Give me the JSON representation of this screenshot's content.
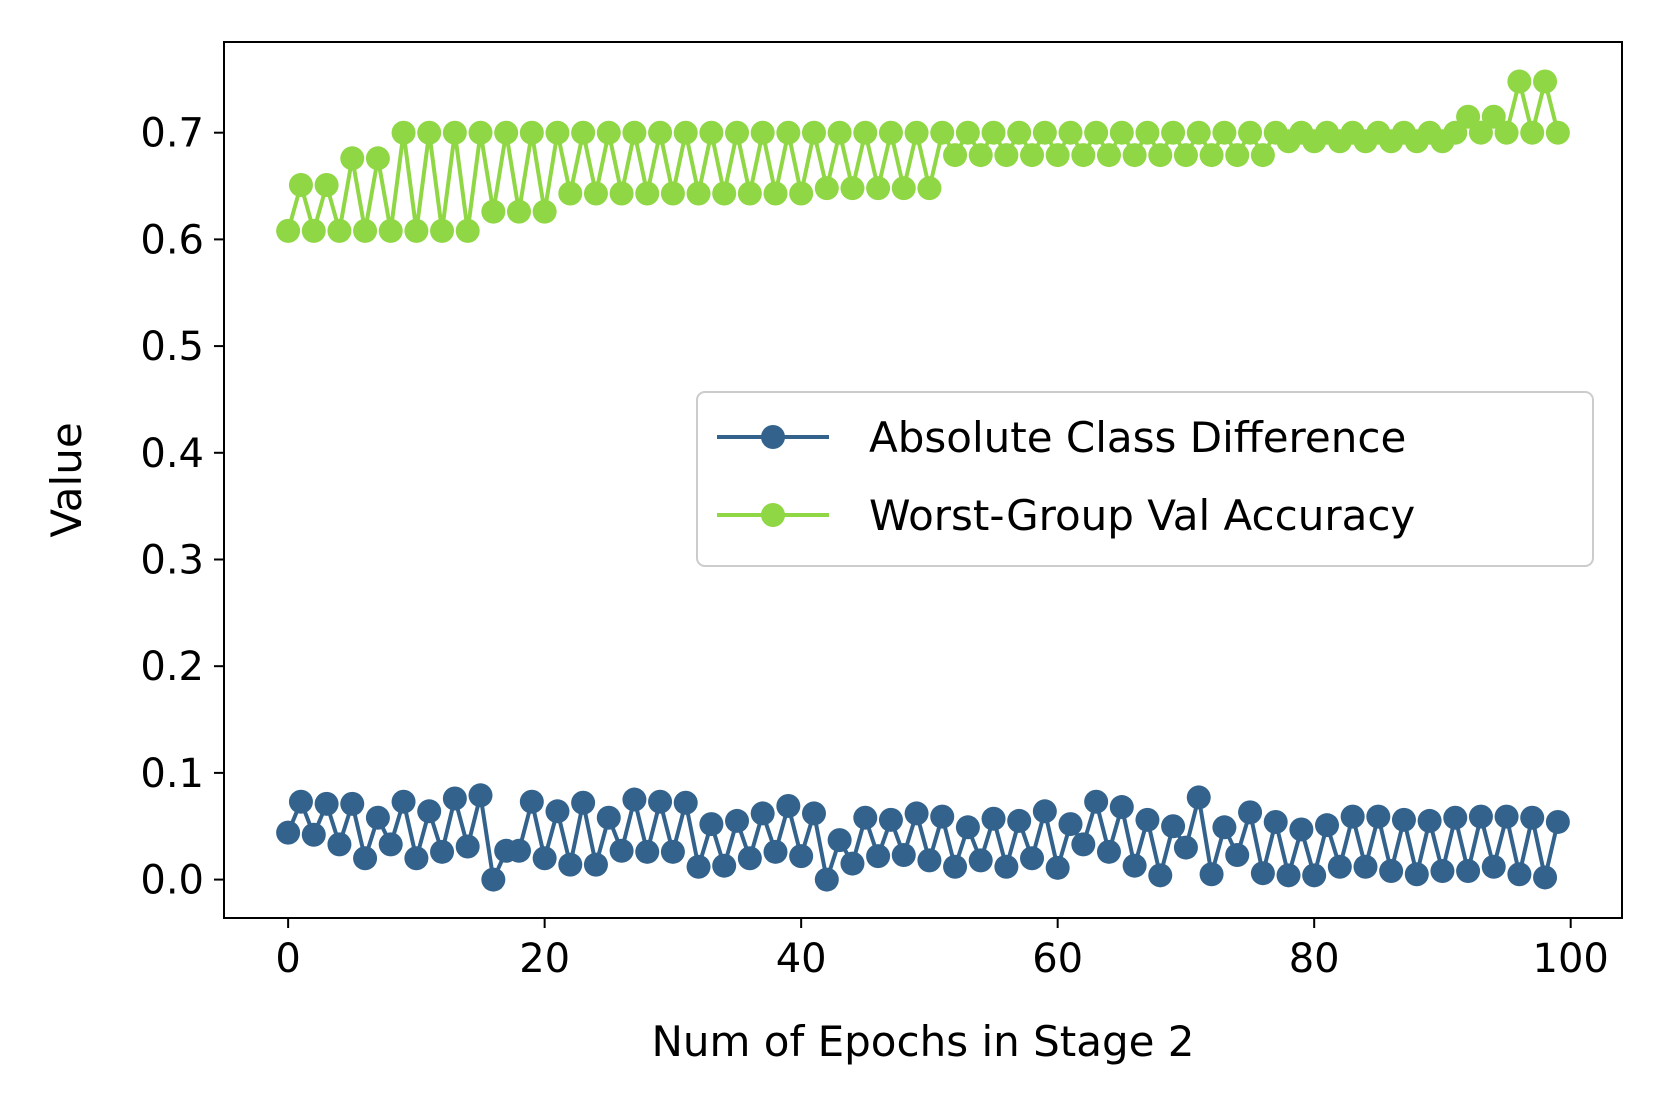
{
  "chart_data": {
    "type": "line",
    "title": "",
    "xlabel": "Num of Epochs in Stage 2",
    "ylabel": "Value",
    "xlim": [
      -5,
      104
    ],
    "ylim": [
      -0.036,
      0.785
    ],
    "x_ticks": [
      0,
      20,
      40,
      60,
      80,
      100
    ],
    "x_tick_labels": [
      "0",
      "20",
      "40",
      "60",
      "80",
      "100"
    ],
    "y_ticks": [
      0.0,
      0.1,
      0.2,
      0.3,
      0.4,
      0.5,
      0.6,
      0.7
    ],
    "y_tick_labels": [
      "0.0",
      "0.1",
      "0.2",
      "0.3",
      "0.4",
      "0.5",
      "0.6",
      "0.7"
    ],
    "grid": false,
    "legend_position": "center-right",
    "x": [
      0,
      1,
      2,
      3,
      4,
      5,
      6,
      7,
      8,
      9,
      10,
      11,
      12,
      13,
      14,
      15,
      16,
      17,
      18,
      19,
      20,
      21,
      22,
      23,
      24,
      25,
      26,
      27,
      28,
      29,
      30,
      31,
      32,
      33,
      34,
      35,
      36,
      37,
      38,
      39,
      40,
      41,
      42,
      43,
      44,
      45,
      46,
      47,
      48,
      49,
      50,
      51,
      52,
      53,
      54,
      55,
      56,
      57,
      58,
      59,
      60,
      61,
      62,
      63,
      64,
      65,
      66,
      67,
      68,
      69,
      70,
      71,
      72,
      73,
      74,
      75,
      76,
      77,
      78,
      79,
      80,
      81,
      82,
      83,
      84,
      85,
      86,
      87,
      88,
      89,
      90,
      91,
      92,
      93,
      94,
      95,
      96,
      97,
      98,
      99
    ],
    "series": [
      {
        "name": "Absolute Class Difference",
        "color": "#33638d",
        "values": [
          0.044,
          0.073,
          0.042,
          0.071,
          0.033,
          0.071,
          0.02,
          0.058,
          0.033,
          0.073,
          0.02,
          0.064,
          0.026,
          0.076,
          0.031,
          0.079,
          0.0,
          0.027,
          0.027,
          0.073,
          0.02,
          0.064,
          0.014,
          0.072,
          0.014,
          0.058,
          0.027,
          0.075,
          0.026,
          0.073,
          0.026,
          0.072,
          0.012,
          0.052,
          0.013,
          0.055,
          0.02,
          0.062,
          0.026,
          0.069,
          0.022,
          0.062,
          0.0,
          0.037,
          0.015,
          0.058,
          0.022,
          0.056,
          0.023,
          0.062,
          0.018,
          0.059,
          0.012,
          0.049,
          0.018,
          0.057,
          0.012,
          0.055,
          0.02,
          0.064,
          0.011,
          0.052,
          0.033,
          0.073,
          0.026,
          0.068,
          0.013,
          0.056,
          0.004,
          0.05,
          0.03,
          0.077,
          0.005,
          0.049,
          0.023,
          0.063,
          0.006,
          0.054,
          0.004,
          0.047,
          0.004,
          0.051,
          0.012,
          0.059,
          0.012,
          0.059,
          0.008,
          0.056,
          0.005,
          0.055,
          0.008,
          0.058,
          0.008,
          0.059,
          0.012,
          0.059,
          0.005,
          0.058,
          0.002,
          0.054
        ]
      },
      {
        "name": "Worst-Group Val Accuracy",
        "color": "#8fd744",
        "values": [
          0.608,
          0.651,
          0.608,
          0.651,
          0.608,
          0.676,
          0.608,
          0.676,
          0.608,
          0.7,
          0.608,
          0.7,
          0.608,
          0.7,
          0.608,
          0.7,
          0.626,
          0.7,
          0.626,
          0.7,
          0.626,
          0.7,
          0.643,
          0.7,
          0.643,
          0.7,
          0.643,
          0.7,
          0.643,
          0.7,
          0.643,
          0.7,
          0.643,
          0.7,
          0.643,
          0.7,
          0.643,
          0.7,
          0.643,
          0.7,
          0.643,
          0.7,
          0.648,
          0.7,
          0.648,
          0.7,
          0.648,
          0.7,
          0.648,
          0.7,
          0.648,
          0.7,
          0.679,
          0.7,
          0.679,
          0.7,
          0.679,
          0.7,
          0.679,
          0.7,
          0.679,
          0.7,
          0.679,
          0.7,
          0.679,
          0.7,
          0.679,
          0.7,
          0.679,
          0.7,
          0.679,
          0.7,
          0.679,
          0.7,
          0.679,
          0.7,
          0.679,
          0.7,
          0.692,
          0.7,
          0.692,
          0.7,
          0.692,
          0.7,
          0.692,
          0.7,
          0.692,
          0.7,
          0.692,
          0.7,
          0.692,
          0.7,
          0.715,
          0.7,
          0.715,
          0.7,
          0.748,
          0.7,
          0.748,
          0.7
        ]
      }
    ]
  }
}
